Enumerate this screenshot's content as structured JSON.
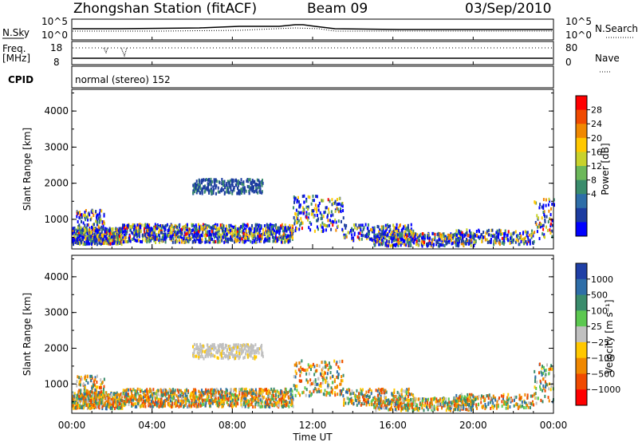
{
  "header": {
    "station": "Zhongshan Station (fitACF)",
    "beam": "Beam 09",
    "date": "03/Sep/2010"
  },
  "panels": {
    "nsky": {
      "label": "N.Sky",
      "right_label": "N.Search",
      "left_ticks": [
        "10^5",
        "10^0"
      ],
      "right_ticks": [
        "10^5",
        "10^0"
      ]
    },
    "freq": {
      "label_line1": "Freq.",
      "label_line2": "[MHz]",
      "left_ticks": [
        "18",
        "8"
      ],
      "right_ticks": [
        "80",
        "0"
      ],
      "right_label": "Nave"
    },
    "cpid": {
      "label": "CPID",
      "mode_text": "normal (stereo) 152"
    }
  },
  "chart_data": [
    {
      "type": "heatmap",
      "title": "",
      "ylabel": "Slant Range [km]",
      "ylim": [
        180,
        4600
      ],
      "yticks": [
        "4000",
        "3000",
        "2000",
        "1000"
      ],
      "colorbar": {
        "label": "Power [dB]",
        "ticks": [
          "28",
          "24",
          "20",
          "16",
          "12",
          "8",
          "4"
        ],
        "colors": [
          "#ff0000",
          "#f04a00",
          "#f08800",
          "#ffc800",
          "#c8d22c",
          "#6cb85a",
          "#3a8c6c",
          "#2e6ea8",
          "#1c3ca0",
          "#0000ff"
        ]
      }
    },
    {
      "type": "heatmap",
      "title": "",
      "ylabel": "Slant Range [km]",
      "ylim": [
        180,
        4600
      ],
      "yticks": [
        "4000",
        "3000",
        "2000",
        "1000"
      ],
      "colorbar": {
        "label": "Velocity [m s⁻¹]",
        "ticks": [
          "1000",
          "500",
          "100",
          "25",
          "−25",
          "−100",
          "−500",
          "−1000"
        ],
        "colors": [
          "#1f3fa6",
          "#2e6ea8",
          "#3a8c6c",
          "#5cc850",
          "#c0c0c0",
          "#ffc800",
          "#f08800",
          "#f04a00",
          "#ff0000"
        ]
      }
    }
  ],
  "xaxis": {
    "label": "Time UT",
    "ticks": [
      "00:00",
      "04:00",
      "08:00",
      "12:00",
      "16:00",
      "20:00",
      "00:00"
    ]
  }
}
